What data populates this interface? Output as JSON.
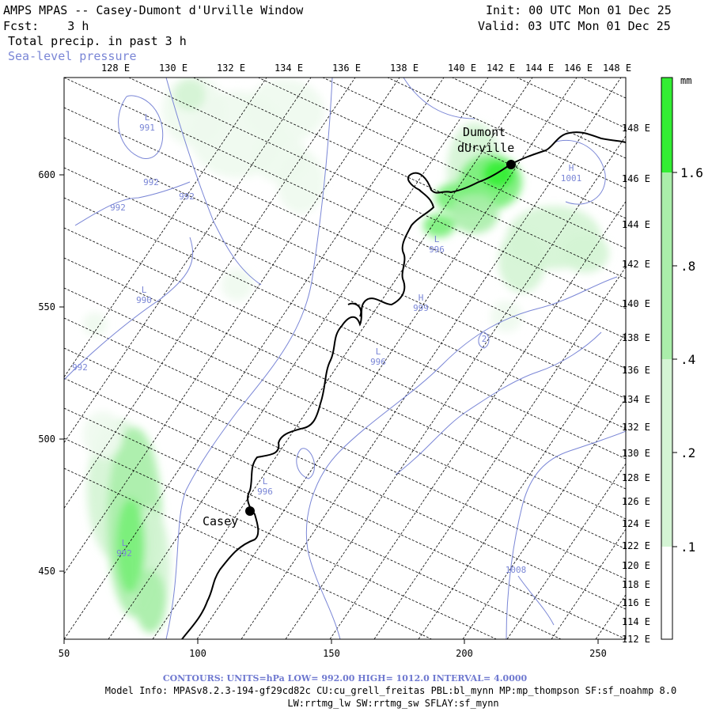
{
  "header": {
    "title": "AMPS MPAS -- Casey-Dumont d'Urville Window",
    "fcst": "Fcst:    3 h",
    "field": "Total precip. in past 3 h",
    "contour_field": "Sea-level pressure",
    "init": "Init: 00 UTC Mon 01 Dec 25",
    "valid": "Valid: 03 UTC Mon 01 Dec 25"
  },
  "axes": {
    "x_ticks": [
      "50",
      "100",
      "150",
      "200",
      "250"
    ],
    "y_ticks": [
      "450",
      "500",
      "550",
      "600"
    ],
    "top_lon_labels": [
      "128 E",
      "130 E",
      "132 E",
      "134 E",
      "136 E",
      "138 E",
      "140 E",
      "142 E",
      "144 E",
      "146 E",
      "148 E"
    ],
    "right_lon_labels": [
      "148 E",
      "146 E",
      "144 E",
      "142 E",
      "140 E",
      "138 E",
      "136 E",
      "134 E",
      "132 E",
      "130 E",
      "128 E",
      "126 E",
      "124 E",
      "122 E",
      "120 E",
      "118 E",
      "116 E",
      "114 E",
      "112 E"
    ]
  },
  "colorbar": {
    "unit": "mm",
    "labels": [
      "1.6",
      ".8",
      ".4",
      ".2",
      ".1"
    ],
    "colors": [
      "#33ee33",
      "#77ee77",
      "#aaeeaa",
      "#d4f4d4",
      "#eefaee"
    ]
  },
  "places": [
    {
      "name": "Casey",
      "label": "Casey"
    },
    {
      "name": "dumont-durville",
      "label": "Dumont\ndUrville"
    }
  ],
  "pressure_labels": [
    {
      "text": "L\n991"
    },
    {
      "text": "992"
    },
    {
      "text": "992"
    },
    {
      "text": "992"
    },
    {
      "text": "L\n990"
    },
    {
      "text": "992"
    },
    {
      "text": "L\n996"
    },
    {
      "text": "H\n999"
    },
    {
      "text": "L\n996"
    },
    {
      "text": "L\n996"
    },
    {
      "text": "L\n992"
    },
    {
      "text": "1008"
    },
    {
      "text": "H\n1001"
    },
    {
      "text": "2"
    }
  ],
  "footer": {
    "contours": "CONTOURS:  UNITS=hPa  LOW=  992.00      HIGH=  1012.0      INTERVAL=   4.0000",
    "model_info_1": "Model Info: MPASv8.2.3-194-gf29cd82c CU:cu_grell_freitas PBL:bl_mynn MP:mp_thompson SF:sf_noahmp 8.0",
    "model_info_2": "LW:rrtmg_lw SW:rrtmg_sw SFLAY:sf_mynn"
  },
  "colors": {
    "contour": "#7a86d6",
    "coast": "#000000",
    "grid": "#000000"
  }
}
